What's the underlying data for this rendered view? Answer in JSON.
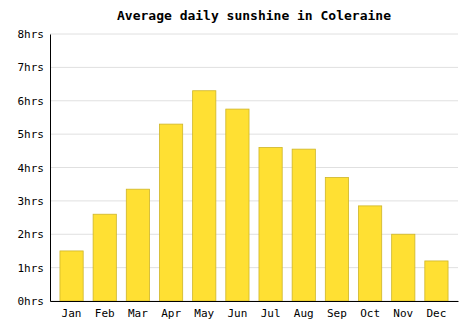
{
  "chart_data": {
    "type": "bar",
    "title": "Average daily sunshine in Coleraine",
    "categories": [
      "Jan",
      "Feb",
      "Mar",
      "Apr",
      "May",
      "Jun",
      "Jul",
      "Aug",
      "Sep",
      "Oct",
      "Nov",
      "Dec"
    ],
    "values": [
      1.5,
      2.6,
      3.35,
      5.3,
      6.3,
      5.75,
      4.6,
      4.55,
      3.7,
      2.85,
      2.0,
      1.2
    ],
    "color": "#FFE033",
    "ylim": [
      0,
      8
    ],
    "yticks": [
      {
        "value": 0,
        "label": "0hrs"
      },
      {
        "value": 1,
        "label": "1hrs"
      },
      {
        "value": 2,
        "label": "2hrs"
      },
      {
        "value": 3,
        "label": "3hrs"
      },
      {
        "value": 4,
        "label": "4hrs"
      },
      {
        "value": 5,
        "label": "5hrs"
      },
      {
        "value": 6,
        "label": "6hrs"
      },
      {
        "value": 7,
        "label": "7hrs"
      },
      {
        "value": 8,
        "label": "8hrs"
      }
    ],
    "grid": true
  }
}
